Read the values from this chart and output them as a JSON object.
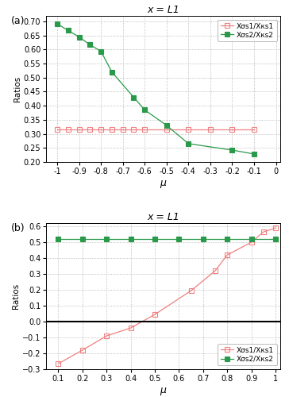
{
  "title": "x = L1",
  "subplot_a": {
    "label": "(a)",
    "xlabel": "μ",
    "ylabel": "Ratios",
    "xlim": [
      -1.05,
      0.02
    ],
    "ylim": [
      0.2,
      0.72
    ],
    "yticks": [
      0.2,
      0.25,
      0.3,
      0.35,
      0.4,
      0.45,
      0.5,
      0.55,
      0.6,
      0.65,
      0.7
    ],
    "xticks": [
      -1.0,
      -0.9,
      -0.8,
      -0.7,
      -0.6,
      -0.5,
      -0.4,
      -0.3,
      -0.2,
      -0.1,
      0.0
    ],
    "series1": {
      "label": "Xσs1/Xκs1",
      "x": [
        -1.0,
        -0.95,
        -0.9,
        -0.85,
        -0.8,
        -0.75,
        -0.7,
        -0.65,
        -0.6,
        -0.5,
        -0.4,
        -0.3,
        -0.2,
        -0.1
      ],
      "y": [
        0.315,
        0.315,
        0.315,
        0.315,
        0.315,
        0.315,
        0.315,
        0.315,
        0.315,
        0.315,
        0.315,
        0.315,
        0.315,
        0.315
      ],
      "color": "#f08080",
      "marker": "s",
      "markerfacecolor": "none",
      "markersize": 4.5
    },
    "series2": {
      "label": "Xσs2/Xκs2",
      "x": [
        -1.0,
        -0.95,
        -0.9,
        -0.85,
        -0.8,
        -0.75,
        -0.65,
        -0.6,
        -0.5,
        -0.4,
        -0.2,
        -0.1
      ],
      "y": [
        0.692,
        0.668,
        0.645,
        0.617,
        0.594,
        0.52,
        0.43,
        0.385,
        0.33,
        0.265,
        0.242,
        0.228
      ],
      "color": "#2a9a4a",
      "marker": "s",
      "markerfacecolor": "#2a9a4a",
      "markersize": 4.5
    }
  },
  "subplot_b": {
    "label": "(b)",
    "xlabel": "μ",
    "ylabel": "Ratios",
    "xlim": [
      0.05,
      1.02
    ],
    "ylim": [
      -0.3,
      0.62
    ],
    "yticks": [
      -0.3,
      -0.2,
      -0.1,
      0.0,
      0.1,
      0.2,
      0.3,
      0.4,
      0.5,
      0.6
    ],
    "xticks": [
      0.1,
      0.2,
      0.3,
      0.4,
      0.5,
      0.6,
      0.7,
      0.8,
      0.9,
      1.0
    ],
    "series1": {
      "label": "Xσs1/Xκs1",
      "x": [
        0.1,
        0.2,
        0.3,
        0.4,
        0.5,
        0.65,
        0.75,
        0.8,
        0.9,
        0.95,
        1.0
      ],
      "y": [
        -0.265,
        -0.18,
        -0.09,
        -0.04,
        0.045,
        0.195,
        0.32,
        0.42,
        0.5,
        0.565,
        0.59
      ],
      "color": "#f08080",
      "marker": "s",
      "markerfacecolor": "none",
      "markersize": 4.5
    },
    "series2": {
      "label": "Xσs2/Xκs2",
      "x": [
        0.1,
        0.2,
        0.3,
        0.4,
        0.5,
        0.6,
        0.7,
        0.8,
        0.9,
        1.0
      ],
      "y": [
        0.52,
        0.52,
        0.52,
        0.52,
        0.52,
        0.52,
        0.52,
        0.52,
        0.52,
        0.52
      ],
      "color": "#2a9a4a",
      "marker": "s",
      "markerfacecolor": "#2a9a4a",
      "markersize": 4.5
    }
  }
}
